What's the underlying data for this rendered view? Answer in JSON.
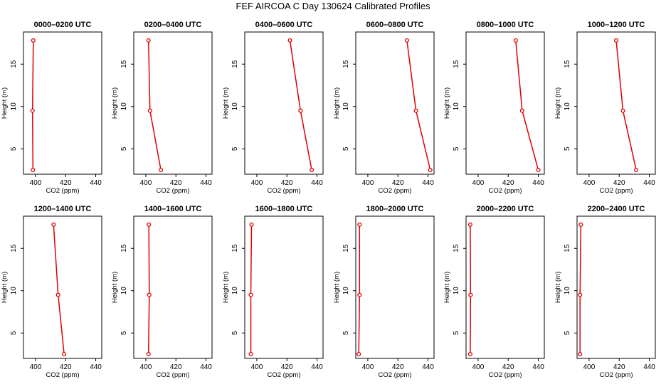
{
  "figure": {
    "title": "FEF AIRCOA C  Day 130624  Calibrated Profiles"
  },
  "chart_data": {
    "type": "line",
    "shared": {
      "xlabel": "CO2 (ppm)",
      "ylabel": "Height (m)",
      "xlim": [
        392,
        444
      ],
      "ylim": [
        2,
        18.8
      ],
      "xticks": [
        400,
        420,
        440
      ],
      "yticks": [
        5,
        10,
        15
      ],
      "heights": [
        2.5,
        9.5,
        17.8
      ],
      "grid": false,
      "legend": "none",
      "line_color": "#e00000"
    },
    "panels": [
      {
        "title": "0000–0200 UTC",
        "x": [
          398.3,
          398.0,
          398.5
        ]
      },
      {
        "title": "0200–0400 UTC",
        "x": [
          410.0,
          402.8,
          401.8
        ]
      },
      {
        "title": "0400–0600 UTC",
        "x": [
          436.5,
          429.0,
          422.0
        ]
      },
      {
        "title": "0600–0800 UTC",
        "x": [
          441.5,
          432.0,
          426.0
        ]
      },
      {
        "title": "0800–1000 UTC",
        "x": [
          440.0,
          429.3,
          425.0
        ]
      },
      {
        "title": "1000–1200 UTC",
        "x": [
          431.3,
          422.5,
          418.0
        ]
      },
      {
        "title": "1200–1400 UTC",
        "x": [
          419.0,
          415.0,
          412.0
        ]
      },
      {
        "title": "1400–1600 UTC",
        "x": [
          401.8,
          402.3,
          402.0
        ]
      },
      {
        "title": "1600–1800 UTC",
        "x": [
          396.0,
          396.0,
          396.5
        ]
      },
      {
        "title": "1800–2000 UTC",
        "x": [
          394.0,
          394.5,
          394.5
        ]
      },
      {
        "title": "2000–2200 UTC",
        "x": [
          394.8,
          395.0,
          394.8
        ]
      },
      {
        "title": "2200–2400 UTC",
        "x": [
          394.0,
          394.0,
          394.5
        ]
      }
    ]
  }
}
